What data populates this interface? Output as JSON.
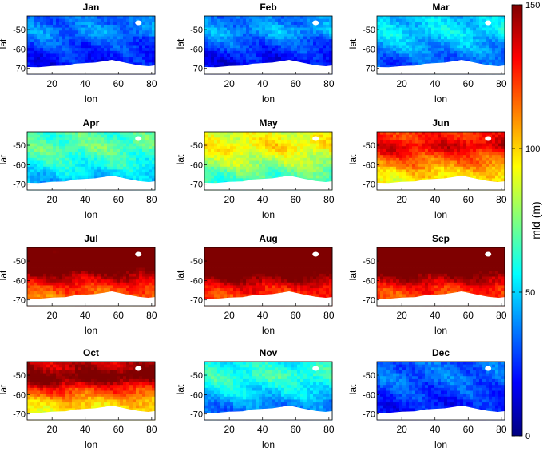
{
  "chart_data": {
    "type": "heatmap",
    "panels": [
      {
        "title": "Jan",
        "level": 25,
        "north": 15,
        "south": 5
      },
      {
        "title": "Feb",
        "level": 25,
        "north": 20,
        "south": 8
      },
      {
        "title": "Mar",
        "level": 40,
        "north": 14,
        "south": 10
      },
      {
        "title": "Apr",
        "level": 58,
        "north": 14,
        "south": 12
      },
      {
        "title": "May",
        "level": 78,
        "north": 20,
        "south": 14
      },
      {
        "title": "Jun",
        "level": 108,
        "north": 30,
        "south": 14
      },
      {
        "title": "Jul",
        "level": 130,
        "north": 50,
        "south": 15
      },
      {
        "title": "Aug",
        "level": 138,
        "north": 55,
        "south": 15
      },
      {
        "title": "Sep",
        "level": 135,
        "north": 52,
        "south": 15
      },
      {
        "title": "Oct",
        "level": 110,
        "north": 50,
        "south": 15
      },
      {
        "title": "Nov",
        "level": 48,
        "north": 18,
        "south": 14
      },
      {
        "title": "Dec",
        "level": 26,
        "north": 10,
        "south": 5
      }
    ],
    "xlabel": "lon",
    "ylabel": "lat",
    "xticks": [
      20,
      40,
      60,
      80
    ],
    "yticks": [
      -50,
      -60,
      -70
    ],
    "xlim": [
      5,
      82
    ],
    "ylim": [
      -73,
      -43
    ],
    "colorbar": {
      "label": "mld (m)",
      "ticks": [
        0,
        50,
        100,
        150
      ],
      "range": [
        0,
        150
      ]
    },
    "colormap": [
      "#00007f",
      "#0000ff",
      "#007fff",
      "#00ffff",
      "#7fff7f",
      "#ffff00",
      "#ff7f00",
      "#ff0000",
      "#7f0000"
    ]
  }
}
